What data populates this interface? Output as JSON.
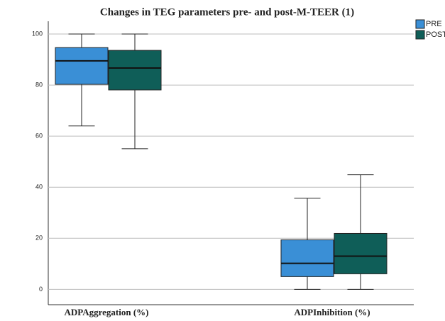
{
  "chart_data": {
    "type": "box",
    "title": "Changes in TEG parameters pre- and post-M-TEER (1)",
    "categories": [
      "ADPAggregation (%)",
      "ADPInhibition (%)"
    ],
    "series": [
      {
        "name": "PRE",
        "color": "#3a8fd6",
        "values": [
          {
            "min": 64,
            "q1": 80.3,
            "median": 89.5,
            "q3": 94.7,
            "max": 100
          },
          {
            "min": 0,
            "q1": 5,
            "median": 10.2,
            "q3": 19.4,
            "max": 35.7
          }
        ]
      },
      {
        "name": "POST",
        "color": "#0f5e58",
        "values": [
          {
            "min": 55.1,
            "q1": 78.1,
            "median": 86.7,
            "q3": 93.6,
            "max": 100
          },
          {
            "min": 0,
            "q1": 6.1,
            "median": 13,
            "q3": 21.9,
            "max": 44.9
          }
        ]
      }
    ],
    "ylim": [
      -6,
      105
    ],
    "yticks": [
      0,
      20,
      40,
      60,
      80,
      100
    ],
    "grid": true,
    "legend": "top-right"
  }
}
